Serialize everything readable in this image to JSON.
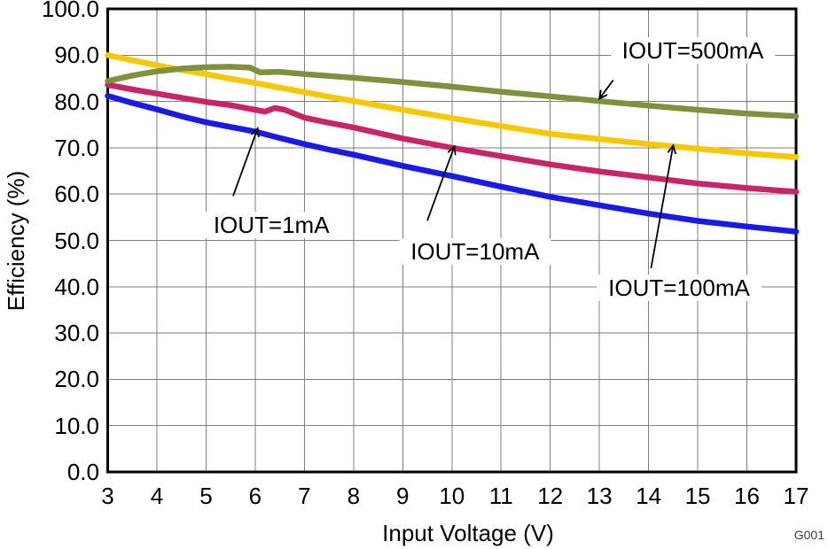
{
  "figure": {
    "footer_label": "G001",
    "background_color": "#ffffff",
    "axis_color": "#000000",
    "gridline_color": "#7f7f7f",
    "text_color": "#000000"
  },
  "chart_data": {
    "type": "line",
    "title": "",
    "xlabel": "Input Voltage (V)",
    "ylabel": "Efficiency (%)",
    "xlim": [
      3,
      17
    ],
    "ylim": [
      0,
      100
    ],
    "grid": true,
    "legend_position": "none (inline annotations with arrows)",
    "x_tick_labels": [
      "3",
      "4",
      "5",
      "6",
      "7",
      "8",
      "9",
      "10",
      "11",
      "12",
      "13",
      "14",
      "15",
      "16",
      "17"
    ],
    "y_tick_labels": [
      "0.0",
      "10.0",
      "20.0",
      "30.0",
      "40.0",
      "50.0",
      "60.0",
      "70.0",
      "80.0",
      "90.0",
      "100.0"
    ],
    "series": [
      {
        "name": "IOUT=100mA",
        "color": "#F5C800",
        "x": [
          3,
          3.5,
          4,
          4.5,
          5,
          5.5,
          6,
          6.5,
          7,
          7.5,
          8,
          9,
          10,
          11,
          12,
          13,
          14,
          15,
          16,
          17
        ],
        "y": [
          90.0,
          88.9,
          87.8,
          86.8,
          85.9,
          84.9,
          84.0,
          83.0,
          82.0,
          81.0,
          80.1,
          78.2,
          76.4,
          74.7,
          73.0,
          71.9,
          70.8,
          69.8,
          68.8,
          68.0
        ]
      },
      {
        "name": "IOUT=1mA",
        "color": "#1A1AE6",
        "x": [
          3,
          3.5,
          4,
          4.5,
          5,
          5.5,
          6,
          6.5,
          7,
          7.5,
          8,
          9,
          10,
          11,
          12,
          13,
          14,
          15,
          16,
          17
        ],
        "y": [
          81.2,
          79.7,
          78.3,
          76.8,
          75.5,
          74.5,
          73.5,
          72.1,
          70.8,
          69.6,
          68.5,
          66.1,
          63.9,
          61.6,
          59.4,
          57.6,
          55.8,
          54.2,
          53.0,
          51.9
        ]
      },
      {
        "name": "IOUT=10mA",
        "color": "#C72566",
        "x": [
          3,
          3.5,
          4,
          4.5,
          5,
          5.5,
          6,
          6.2,
          6.4,
          6.6,
          7,
          7.5,
          8,
          9,
          10,
          11,
          12,
          13,
          14,
          15,
          16,
          17
        ],
        "y": [
          83.6,
          82.6,
          81.7,
          80.8,
          79.9,
          79.2,
          78.2,
          77.8,
          78.6,
          78.2,
          76.5,
          75.4,
          74.4,
          72.0,
          70.0,
          68.2,
          66.4,
          64.9,
          63.6,
          62.3,
          61.3,
          60.5
        ]
      },
      {
        "name": "IOUT=500mA",
        "color": "#7E913D",
        "x": [
          3,
          3.5,
          4,
          4.5,
          5,
          5.5,
          5.9,
          6.1,
          6.5,
          7,
          7.5,
          8,
          9,
          10,
          11,
          12,
          13,
          14,
          15,
          16,
          17
        ],
        "y": [
          84.4,
          85.6,
          86.5,
          87.1,
          87.4,
          87.5,
          87.3,
          86.3,
          86.4,
          85.9,
          85.5,
          85.1,
          84.2,
          83.2,
          82.1,
          81.1,
          80.1,
          79.1,
          78.2,
          77.4,
          76.8
        ]
      }
    ],
    "annotations": [
      {
        "label": "IOUT=1mA",
        "text_xy": [
          6.33,
          53.4
        ],
        "arrow_from": [
          5.55,
          59.6
        ],
        "arrow_to": [
          6.05,
          74.2
        ]
      },
      {
        "label": "IOUT=10mA",
        "text_xy": [
          10.47,
          47.6
        ],
        "arrow_from": [
          9.5,
          54.3
        ],
        "arrow_to": [
          10.05,
          70.3
        ]
      },
      {
        "label": "IOUT=100mA",
        "text_xy": [
          14.62,
          39.8
        ],
        "arrow_from": [
          14.05,
          44.0
        ],
        "arrow_to": [
          14.5,
          70.5
        ]
      },
      {
        "label": "IOUT=500mA",
        "text_xy": [
          14.9,
          91.0
        ],
        "arrow_from": [
          13.28,
          84.6
        ],
        "arrow_to": [
          13.0,
          80.6
        ]
      }
    ]
  }
}
